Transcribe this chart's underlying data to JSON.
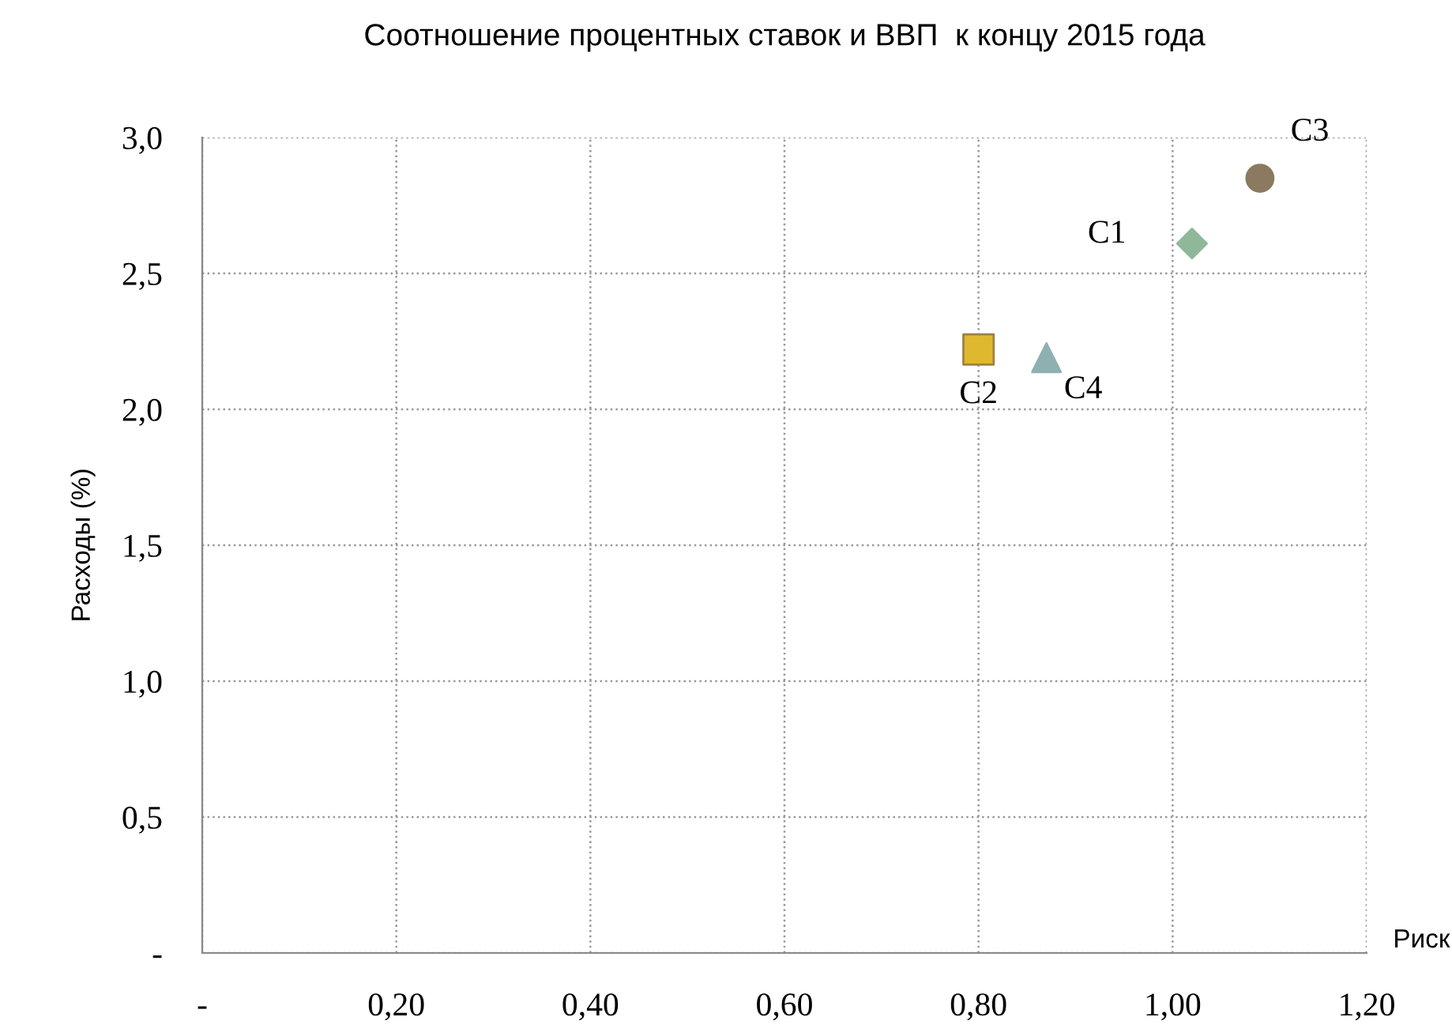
{
  "chart_data": {
    "type": "scatter",
    "title": "Соотношение процентных ставок и ВВП  к концу 2015 года",
    "xlabel": "Риск",
    "ylabel": "Расходы (%)",
    "xlim": [
      0,
      1.2
    ],
    "xticks": [
      {
        "value": 0,
        "label": "-"
      },
      {
        "value": 0.2,
        "label": "0,20"
      },
      {
        "value": 0.4,
        "label": "0,40"
      },
      {
        "value": 0.6,
        "label": "0,60"
      },
      {
        "value": 0.8,
        "label": "0,80"
      },
      {
        "value": 1.0,
        "label": "1,00"
      },
      {
        "value": 1.2,
        "label": "1,20"
      }
    ],
    "ylim": [
      0,
      3.0
    ],
    "yticks": [
      {
        "value": 0,
        "label": "-"
      },
      {
        "value": 0.5,
        "label": "0,5"
      },
      {
        "value": 1.0,
        "label": "1,0"
      },
      {
        "value": 1.5,
        "label": "1,5"
      },
      {
        "value": 2.0,
        "label": "2,0"
      },
      {
        "value": 2.5,
        "label": "2,5"
      },
      {
        "value": 3.0,
        "label": "3,0"
      }
    ],
    "grid": true,
    "legend": false,
    "series": [
      {
        "name": "C1",
        "color": "#8fb89a",
        "marker": "diamond",
        "x": [
          1.02
        ],
        "values": [
          2.61
        ]
      },
      {
        "name": "C2",
        "color": "#e0b830",
        "marker": "square",
        "x": [
          0.8
        ],
        "values": [
          2.22
        ]
      },
      {
        "name": "C3",
        "color": "#8b7a60",
        "marker": "circle",
        "x": [
          1.09
        ],
        "values": [
          2.85
        ]
      },
      {
        "name": "C4",
        "color": "#8fb0b0",
        "marker": "triangle",
        "x": [
          0.87
        ],
        "values": [
          2.19
        ]
      }
    ]
  }
}
